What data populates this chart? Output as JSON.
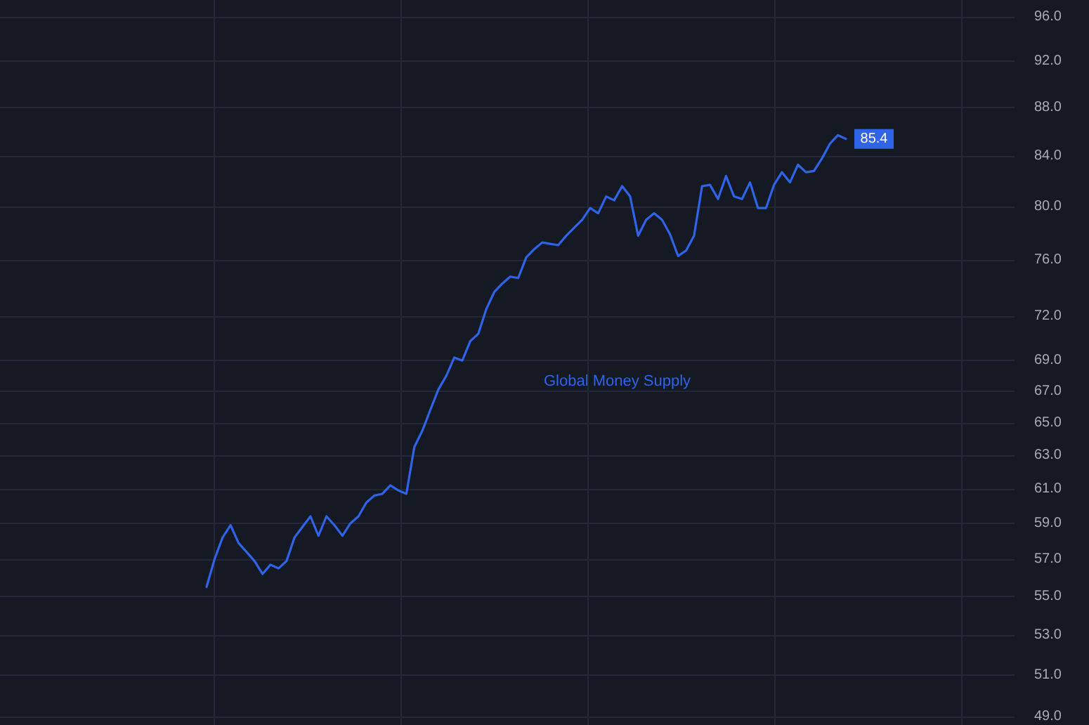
{
  "chart_data": {
    "type": "line",
    "annotations": [
      "Global Money Supply"
    ],
    "categories": [
      null,
      null,
      null,
      null,
      null,
      null,
      null,
      null,
      null,
      null,
      null,
      null,
      null,
      null,
      null,
      null,
      null,
      null,
      null,
      null,
      null,
      null,
      null,
      null,
      null,
      null,
      null,
      null,
      null,
      null,
      null,
      null,
      null,
      null,
      null,
      null,
      null,
      null,
      null,
      null,
      null,
      null,
      null,
      null,
      null,
      null,
      null,
      null,
      null,
      null,
      null,
      null,
      null,
      null,
      null,
      null,
      null,
      null,
      null,
      null,
      null,
      null,
      null,
      null,
      null,
      null,
      null,
      null,
      null,
      null,
      null,
      null,
      null,
      null,
      null,
      null,
      null,
      null,
      null,
      null,
      null
    ],
    "series": [
      {
        "color": "#2f63e8",
        "values": [
          55.5,
          57.0,
          58.2,
          58.9,
          57.9,
          57.4,
          56.9,
          56.2,
          56.7,
          56.5,
          56.9,
          58.2,
          58.8,
          59.4,
          58.3,
          59.4,
          58.9,
          58.3,
          59.0,
          59.4,
          60.2,
          60.6,
          60.7,
          61.2,
          60.9,
          60.7,
          63.5,
          64.5,
          65.8,
          67.1,
          68.0,
          69.2,
          69.0,
          70.3,
          70.8,
          72.5,
          73.7,
          74.3,
          74.8,
          74.7,
          76.2,
          76.8,
          77.3,
          77.2,
          77.1,
          77.8,
          78.4,
          79.0,
          79.9,
          79.5,
          80.8,
          80.5,
          81.6,
          80.8,
          77.8,
          79.0,
          79.5,
          79.0,
          77.9,
          76.3,
          76.7,
          77.8,
          81.6,
          81.7,
          80.6,
          82.4,
          80.8,
          80.6,
          81.9,
          79.9,
          79.9,
          81.7,
          82.7,
          81.9,
          83.3,
          82.7,
          82.8,
          83.8,
          85.0,
          85.7,
          85.4
        ],
        "value_labels": [
          null,
          null,
          null,
          null,
          null,
          null,
          null,
          null,
          null,
          null,
          null,
          null,
          null,
          null,
          null,
          null,
          null,
          null,
          null,
          null,
          null,
          null,
          null,
          null,
          null,
          null,
          null,
          null,
          null,
          null,
          null,
          null,
          null,
          null,
          null,
          null,
          null,
          null,
          null,
          null,
          null,
          null,
          null,
          null,
          null,
          null,
          null,
          null,
          null,
          null,
          null,
          null,
          null,
          null,
          null,
          null,
          null,
          null,
          null,
          null,
          null,
          null,
          null,
          null,
          null,
          null,
          null,
          null,
          null,
          null,
          null,
          null,
          null,
          null,
          null,
          null,
          null,
          null,
          null,
          null,
          "85.4"
        ]
      }
    ],
    "ylim": [
      48.6,
      97.6
    ],
    "yticks": [
      {
        "value": 49,
        "label": "49.0"
      },
      {
        "value": 51,
        "label": "51.0"
      },
      {
        "value": 53,
        "label": "53.0"
      },
      {
        "value": 55,
        "label": "55.0"
      },
      {
        "value": 57,
        "label": "57.0"
      },
      {
        "value": 59,
        "label": "59.0"
      },
      {
        "value": 61,
        "label": "61.0"
      },
      {
        "value": 63,
        "label": "63.0"
      },
      {
        "value": 65,
        "label": "65.0"
      },
      {
        "value": 67,
        "label": "67.0"
      },
      {
        "value": 69,
        "label": "69.0"
      },
      {
        "value": 72,
        "label": "72.0"
      },
      {
        "value": 76,
        "label": "76.0"
      },
      {
        "value": 80,
        "label": "80.0"
      },
      {
        "value": 84,
        "label": "84.0"
      },
      {
        "value": 88,
        "label": "88.0"
      },
      {
        "value": 92,
        "label": "92.0"
      },
      {
        "value": 96,
        "label": "96.0"
      }
    ],
    "log": true,
    "grid": true,
    "tick_labels": "y",
    "marker": "none",
    "line_style": "solid"
  }
}
